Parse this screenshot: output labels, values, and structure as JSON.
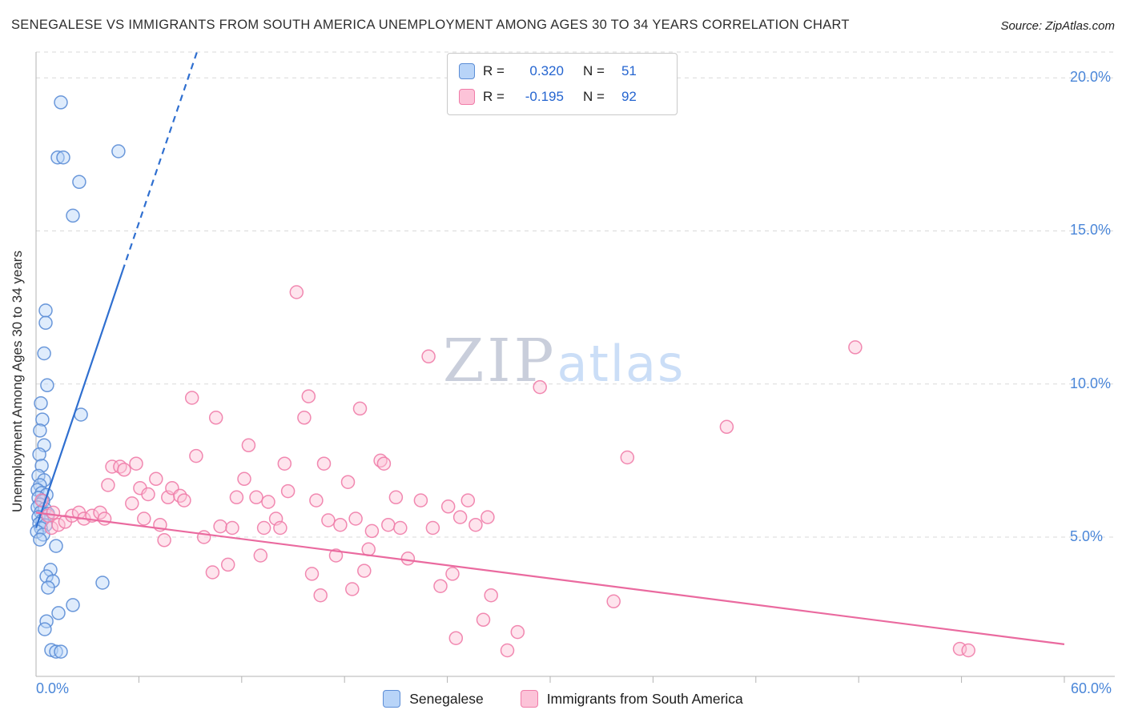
{
  "header": {
    "title": "SENEGALESE VS IMMIGRANTS FROM SOUTH AMERICA UNEMPLOYMENT AMONG AGES 30 TO 34 YEARS CORRELATION CHART",
    "source": "Source: ZipAtlas.com"
  },
  "watermark": {
    "zip": "ZIP",
    "atlas": "atlas"
  },
  "correlation_legend": {
    "rows": [
      {
        "series": "Senegalese",
        "r_label": "R =",
        "r_value": "0.320",
        "n_label": "N =",
        "n_value": "51"
      },
      {
        "series": "Immigrants from South America",
        "r_label": "R =",
        "r_value": "-0.195",
        "n_label": "N =",
        "n_value": "92"
      }
    ]
  },
  "axes": {
    "ylabel": "Unemployment Among Ages 30 to 34 years",
    "y_tick_labels": [
      "20.0%",
      "15.0%",
      "10.0%",
      "5.0%"
    ],
    "x_min_label": "0.0%",
    "x_max_label": "60.0%"
  },
  "chart_data": {
    "type": "scatter",
    "title": "Senegalese vs Immigrants from South America Unemployment Among Ages 30 to 34 Years",
    "xlabel": "",
    "ylabel": "Unemployment Among Ages 30 to 34 years",
    "xlim": [
      0,
      60
    ],
    "ylim": [
      0,
      20.84
    ],
    "x_unit": "%",
    "y_unit": "%",
    "grid": true,
    "legend_position": "bottom",
    "y_gridlines": [
      5,
      10,
      15,
      20
    ],
    "x_ticks": [
      6,
      12,
      18,
      24,
      30,
      36,
      42,
      48,
      54,
      60
    ],
    "series": [
      {
        "name": "Senegalese",
        "R": 0.32,
        "N": 51,
        "point_color": "#5b8dd6",
        "point_fill": "#b8d4f8",
        "points": [
          [
            1.45,
            19.2
          ],
          [
            1.26,
            17.4
          ],
          [
            1.59,
            17.4
          ],
          [
            4.81,
            17.6
          ],
          [
            2.52,
            16.6
          ],
          [
            2.15,
            15.5
          ],
          [
            0.56,
            12.4
          ],
          [
            0.56,
            12.0
          ],
          [
            0.47,
            11.0
          ],
          [
            0.65,
            9.96
          ],
          [
            0.28,
            9.37
          ],
          [
            2.62,
            9.0
          ],
          [
            0.37,
            8.84
          ],
          [
            0.23,
            8.48
          ],
          [
            0.47,
            8.0
          ],
          [
            0.19,
            7.7
          ],
          [
            0.33,
            7.33
          ],
          [
            0.14,
            7.0
          ],
          [
            0.47,
            6.86
          ],
          [
            0.23,
            6.7
          ],
          [
            0.09,
            6.54
          ],
          [
            0.33,
            6.44
          ],
          [
            0.61,
            6.38
          ],
          [
            0.14,
            6.28
          ],
          [
            0.42,
            6.18
          ],
          [
            0.23,
            6.07
          ],
          [
            0.09,
            5.97
          ],
          [
            0.51,
            5.92
          ],
          [
            0.28,
            5.81
          ],
          [
            0.7,
            5.76
          ],
          [
            0.14,
            5.65
          ],
          [
            0.37,
            5.55
          ],
          [
            0.19,
            5.44
          ],
          [
            0.56,
            5.39
          ],
          [
            0.28,
            5.29
          ],
          [
            0.05,
            5.18
          ],
          [
            0.42,
            5.08
          ],
          [
            0.23,
            4.92
          ],
          [
            1.17,
            4.71
          ],
          [
            0.84,
            3.93
          ],
          [
            0.61,
            3.72
          ],
          [
            0.98,
            3.56
          ],
          [
            3.88,
            3.51
          ],
          [
            0.7,
            3.35
          ],
          [
            2.15,
            2.78
          ],
          [
            1.31,
            2.52
          ],
          [
            0.61,
            2.25
          ],
          [
            0.51,
            1.99
          ],
          [
            0.89,
            1.31
          ],
          [
            1.17,
            1.26
          ],
          [
            1.45,
            1.26
          ]
        ]
      },
      {
        "name": "Immigrants from South America",
        "R": -0.195,
        "N": 92,
        "point_color": "#f07ca8",
        "point_fill": "#fcc3d8",
        "points": [
          [
            0.33,
            6.2
          ],
          [
            0.7,
            5.7
          ],
          [
            0.9,
            5.3
          ],
          [
            1.0,
            5.8
          ],
          [
            1.31,
            5.4
          ],
          [
            1.7,
            5.5
          ],
          [
            2.1,
            5.7
          ],
          [
            2.5,
            5.8
          ],
          [
            2.8,
            5.6
          ],
          [
            3.27,
            5.7
          ],
          [
            3.74,
            5.8
          ],
          [
            4.0,
            5.6
          ],
          [
            4.2,
            6.7
          ],
          [
            4.44,
            7.3
          ],
          [
            4.9,
            7.3
          ],
          [
            5.14,
            7.2
          ],
          [
            5.6,
            6.1
          ],
          [
            5.84,
            7.4
          ],
          [
            6.07,
            6.6
          ],
          [
            6.3,
            5.6
          ],
          [
            6.54,
            6.4
          ],
          [
            7.0,
            6.9
          ],
          [
            7.24,
            5.4
          ],
          [
            7.48,
            4.9
          ],
          [
            7.7,
            6.3
          ],
          [
            7.94,
            6.6
          ],
          [
            8.4,
            6.35
          ],
          [
            8.64,
            6.2
          ],
          [
            9.1,
            9.55
          ],
          [
            9.34,
            7.65
          ],
          [
            9.8,
            5.0
          ],
          [
            10.3,
            3.85
          ],
          [
            10.5,
            8.9
          ],
          [
            10.75,
            5.35
          ],
          [
            11.2,
            4.1
          ],
          [
            11.45,
            5.3
          ],
          [
            11.7,
            6.3
          ],
          [
            12.15,
            6.9
          ],
          [
            12.4,
            8.0
          ],
          [
            12.85,
            6.3
          ],
          [
            13.1,
            4.4
          ],
          [
            13.3,
            5.3
          ],
          [
            13.55,
            6.15
          ],
          [
            14.0,
            5.6
          ],
          [
            14.25,
            5.3
          ],
          [
            14.5,
            7.4
          ],
          [
            14.7,
            6.5
          ],
          [
            15.2,
            13.0
          ],
          [
            15.65,
            8.9
          ],
          [
            15.9,
            9.6
          ],
          [
            16.1,
            3.8
          ],
          [
            16.35,
            6.2
          ],
          [
            16.6,
            3.1
          ],
          [
            16.8,
            7.4
          ],
          [
            17.05,
            5.55
          ],
          [
            17.5,
            4.4
          ],
          [
            17.75,
            5.4
          ],
          [
            18.2,
            6.8
          ],
          [
            18.45,
            3.3
          ],
          [
            18.65,
            5.6
          ],
          [
            18.9,
            9.2
          ],
          [
            19.15,
            3.9
          ],
          [
            19.4,
            4.6
          ],
          [
            19.6,
            5.2
          ],
          [
            20.1,
            7.5
          ],
          [
            20.3,
            7.4
          ],
          [
            20.55,
            5.4
          ],
          [
            21.0,
            6.3
          ],
          [
            21.25,
            5.3
          ],
          [
            21.7,
            4.3
          ],
          [
            22.45,
            6.2
          ],
          [
            22.9,
            10.9
          ],
          [
            23.15,
            5.3
          ],
          [
            23.6,
            3.4
          ],
          [
            24.05,
            6.0
          ],
          [
            24.3,
            3.8
          ],
          [
            24.5,
            1.7
          ],
          [
            24.75,
            5.65
          ],
          [
            25.2,
            6.2
          ],
          [
            25.65,
            5.4
          ],
          [
            26.1,
            2.3
          ],
          [
            26.35,
            5.65
          ],
          [
            26.55,
            3.1
          ],
          [
            27.5,
            1.3
          ],
          [
            28.1,
            1.9
          ],
          [
            29.4,
            9.9
          ],
          [
            33.7,
            2.9
          ],
          [
            34.5,
            7.6
          ],
          [
            40.3,
            8.6
          ],
          [
            47.8,
            11.2
          ],
          [
            53.9,
            1.35
          ],
          [
            54.4,
            1.3
          ]
        ]
      }
    ],
    "trend_lines": [
      {
        "series": "Senegalese",
        "color": "#2f6fd0",
        "segments": [
          {
            "x1": 0,
            "y1": 5.3,
            "x2": 5.05,
            "y2": 13.7,
            "dashed": false
          },
          {
            "x1": 5.05,
            "y1": 13.7,
            "x2": 9.39,
            "y2": 20.84,
            "dashed": true
          }
        ]
      },
      {
        "series": "Immigrants from South America",
        "color": "#ea6a9f",
        "segments": [
          {
            "x1": 0,
            "y1": 5.8,
            "x2": 60,
            "y2": 1.5,
            "dashed": false
          }
        ]
      }
    ]
  }
}
